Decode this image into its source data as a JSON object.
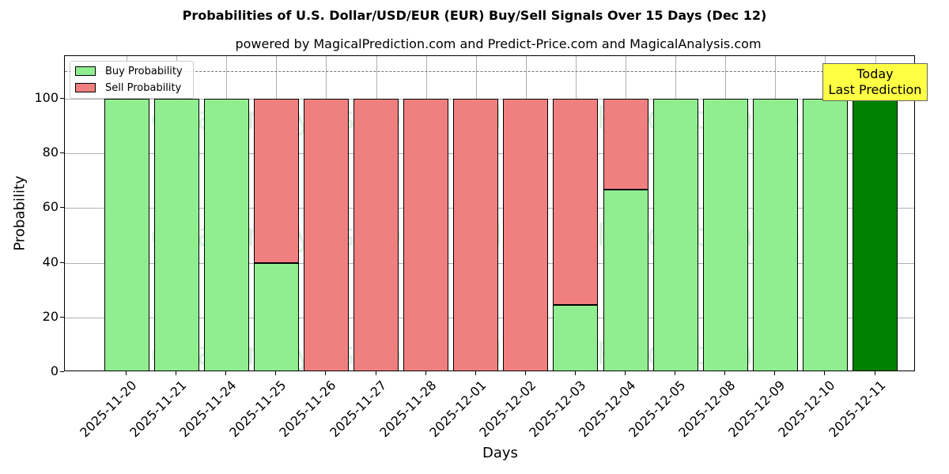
{
  "chart_data": {
    "type": "bar",
    "stacked": true,
    "title": "Probabilities of U.S. Dollar/USD/EUR (EUR) Buy/Sell Signals Over 15 Days (Dec 12)",
    "subtitle": "powered by MagicalPrediction.com and Predict-Price.com and MagicalAnalysis.com",
    "xlabel": "Days",
    "ylabel": "Probability",
    "ylim": [
      0,
      115
    ],
    "yticks": [
      0,
      20,
      40,
      60,
      80,
      100
    ],
    "grid": true,
    "legend_position": "upper left",
    "reference_line": {
      "y": 110,
      "style": "dashed"
    },
    "categories": [
      "2025-11-20",
      "2025-11-21",
      "2025-11-24",
      "2025-11-25",
      "2025-11-26",
      "2025-11-27",
      "2025-11-28",
      "2025-12-01",
      "2025-12-02",
      "2025-12-03",
      "2025-12-04",
      "2025-12-05",
      "2025-12-08",
      "2025-12-09",
      "2025-12-10",
      "2025-12-11"
    ],
    "series": [
      {
        "name": "Buy Probability",
        "color": "#90ee90",
        "values": [
          100,
          100,
          100,
          40,
          0,
          0,
          0,
          0,
          0,
          24.5,
          66.7,
          100,
          100,
          100,
          100,
          100
        ]
      },
      {
        "name": "Sell Probability",
        "color": "#f08080",
        "values": [
          0,
          0,
          0,
          60,
          100,
          100,
          100,
          100,
          100,
          75.5,
          33.3,
          0,
          0,
          0,
          0,
          0
        ]
      }
    ],
    "highlight": {
      "category": "2025-12-11",
      "color": "#008000",
      "annotation": "Today\nLast Prediction"
    }
  },
  "legend": {
    "buy_label": "Buy Probability",
    "sell_label": "Sell Probability"
  },
  "annotation": {
    "line1": "Today",
    "line2": "Last Prediction"
  },
  "watermarks": [
    "MagicalAnalysis.com",
    "MagicalPrediction.com"
  ]
}
